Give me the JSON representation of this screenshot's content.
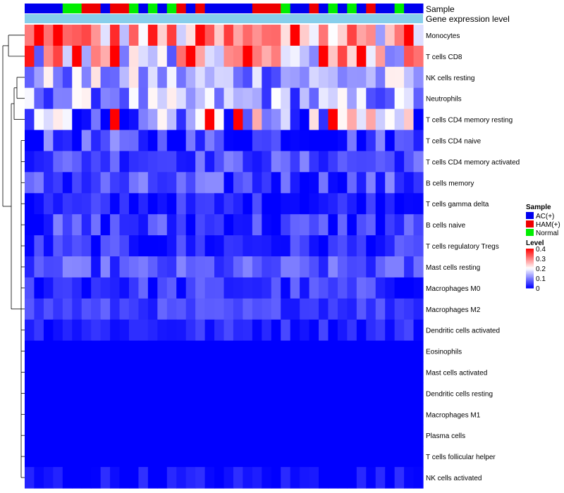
{
  "chart_data": {
    "type": "heatmap",
    "annotation_labels": {
      "sample": "Sample",
      "expression": "Gene expression level"
    },
    "legend": {
      "sample_title": "Sample",
      "sample_entries": [
        {
          "label": "AC(+)",
          "color": "#0000ee"
        },
        {
          "label": "HAM(+)",
          "color": "#ee0000"
        },
        {
          "label": "Normal",
          "color": "#00ee00"
        }
      ],
      "level_title": "Level",
      "level_ticks": [
        "0.4",
        "0.3",
        "0.2",
        "0.1",
        "0"
      ],
      "level_range": [
        0,
        0.4
      ],
      "placement": "right"
    },
    "colors": {
      "low": "#0000ff",
      "mid": "#ffffff",
      "high": "#ff0000",
      "expression_bar": "#87ceeb"
    },
    "samples": [
      "AC(+)",
      "AC(+)",
      "AC(+)",
      "AC(+)",
      "Normal",
      "Normal",
      "HAM(+)",
      "HAM(+)",
      "AC(+)",
      "HAM(+)",
      "HAM(+)",
      "Normal",
      "AC(+)",
      "Normal",
      "AC(+)",
      "Normal",
      "HAM(+)",
      "AC(+)",
      "HAM(+)",
      "AC(+)",
      "AC(+)",
      "AC(+)",
      "AC(+)",
      "AC(+)",
      "HAM(+)",
      "HAM(+)",
      "HAM(+)",
      "Normal",
      "AC(+)",
      "AC(+)",
      "HAM(+)",
      "AC(+)",
      "Normal",
      "AC(+)",
      "Normal",
      "AC(+)",
      "HAM(+)",
      "AC(+)",
      "AC(+)",
      "Normal",
      "AC(+)",
      "AC(+)"
    ],
    "rows": [
      {
        "label": "Monocytes",
        "base": 0.26,
        "spread": 0.09
      },
      {
        "label": "T cells CD8",
        "base": 0.24,
        "spread": 0.11
      },
      {
        "label": "NK cells resting",
        "base": 0.13,
        "spread": 0.06
      },
      {
        "label": "Neutrophils",
        "base": 0.12,
        "spread": 0.06
      },
      {
        "label": "T cells CD4 memory resting",
        "base": 0.1,
        "spread": 0.11
      },
      {
        "label": "T cells CD4 naive",
        "base": 0.04,
        "spread": 0.05
      },
      {
        "label": "T cells CD4 memory activated",
        "base": 0.06,
        "spread": 0.03
      },
      {
        "label": "B cells memory",
        "base": 0.05,
        "spread": 0.04
      },
      {
        "label": "T cells gamma delta",
        "base": 0.02,
        "spread": 0.03
      },
      {
        "label": "B cells naive",
        "base": 0.04,
        "spread": 0.04
      },
      {
        "label": "T cells regulatory  Tregs",
        "base": 0.03,
        "spread": 0.03
      },
      {
        "label": "Mast cells resting",
        "base": 0.06,
        "spread": 0.03
      },
      {
        "label": "Macrophages M0",
        "base": 0.04,
        "spread": 0.03
      },
      {
        "label": "Macrophages M2",
        "base": 0.05,
        "spread": 0.02
      },
      {
        "label": "Dendritic cells activated",
        "base": 0.03,
        "spread": 0.02
      },
      {
        "label": "Eosinophils",
        "base": 0.0,
        "spread": 0.0
      },
      {
        "label": "Mast cells activated",
        "base": 0.0,
        "spread": 0.0
      },
      {
        "label": "Dendritic cells resting",
        "base": 0.0,
        "spread": 0.0
      },
      {
        "label": "Macrophages M1",
        "base": 0.0,
        "spread": 0.0
      },
      {
        "label": "Plasma cells",
        "base": 0.0,
        "spread": 0.0
      },
      {
        "label": "T cells follicular helper",
        "base": 0.0,
        "spread": 0.0
      },
      {
        "label": "NK cells activated",
        "base": 0.01,
        "spread": 0.02
      }
    ]
  }
}
